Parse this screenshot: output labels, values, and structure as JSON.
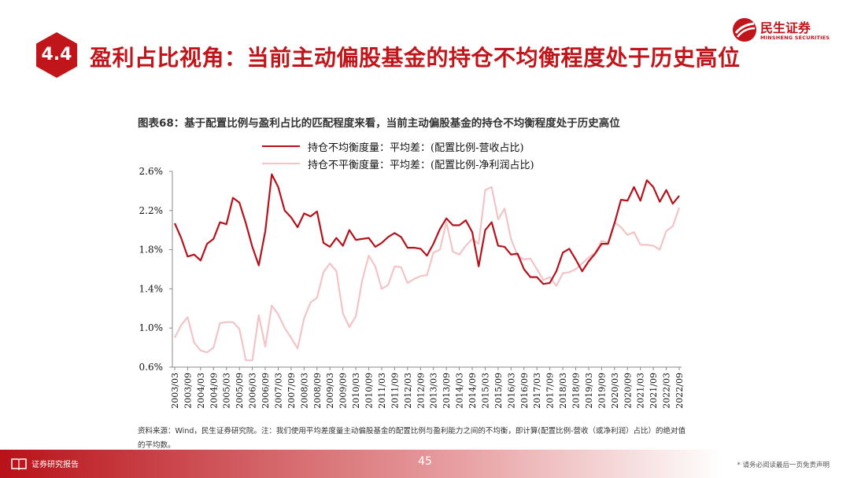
{
  "slide": {
    "section_number": "4.4",
    "title": "盈利占比视角：当前主动偏股基金的持仓不均衡程度处于历史高位",
    "page_number": "45"
  },
  "brand": {
    "name_cn": "民生证券",
    "name_en": "MINSHENG SECURITIES",
    "color": "#c0161b"
  },
  "footer": {
    "label": "证券研究报告",
    "disclaimer": "* 请务必阅读最后一页免责声明"
  },
  "source_note": "资料来源：Wind，民生证券研究院。注：我们使用平均差度量主动偏股基金的配置比例与盈利能力之间的不均衡，即计算(配置比例-营收（或净利润）占比）的绝对值的平均数。",
  "chart_data": {
    "type": "line",
    "title": "图表68：基于配置比例与盈利占比的匹配程度来看，当前主动偏股基金的持仓不均衡程度处于历史高位",
    "xlabel": "",
    "ylabel": "",
    "ylim": [
      0.006,
      0.026
    ],
    "yticks": [
      "0.6%",
      "1.0%",
      "1.4%",
      "1.8%",
      "2.2%",
      "2.6%"
    ],
    "ytick_values": [
      0.006,
      0.01,
      0.014,
      0.018,
      0.022,
      0.026
    ],
    "grid": false,
    "legend_position": "top-center",
    "x_tick_labels": [
      "2003/03",
      "2003/09",
      "2004/03",
      "2004/09",
      "2005/03",
      "2005/09",
      "2006/03",
      "2006/09",
      "2007/03",
      "2007/09",
      "2008/03",
      "2008/09",
      "2009/03",
      "2009/09",
      "2010/03",
      "2010/09",
      "2011/03",
      "2011/09",
      "2012/03",
      "2012/09",
      "2013/03",
      "2013/09",
      "2014/03",
      "2014/09",
      "2015/03",
      "2015/09",
      "2016/03",
      "2016/09",
      "2017/03",
      "2017/09",
      "2018/03",
      "2018/09",
      "2019/03",
      "2019/09",
      "2020/03",
      "2020/09",
      "2021/03",
      "2021/09",
      "2022/03",
      "2022/09"
    ],
    "x": [
      "2003/03",
      "2003/06",
      "2003/09",
      "2003/12",
      "2004/03",
      "2004/06",
      "2004/09",
      "2004/12",
      "2005/03",
      "2005/06",
      "2005/09",
      "2005/12",
      "2006/03",
      "2006/06",
      "2006/09",
      "2006/12",
      "2007/03",
      "2007/06",
      "2007/09",
      "2007/12",
      "2008/03",
      "2008/06",
      "2008/09",
      "2008/12",
      "2009/03",
      "2009/06",
      "2009/09",
      "2009/12",
      "2010/03",
      "2010/06",
      "2010/09",
      "2010/12",
      "2011/03",
      "2011/06",
      "2011/09",
      "2011/12",
      "2012/03",
      "2012/06",
      "2012/09",
      "2012/12",
      "2013/03",
      "2013/06",
      "2013/09",
      "2013/12",
      "2014/03",
      "2014/06",
      "2014/09",
      "2014/12",
      "2015/03",
      "2015/06",
      "2015/09",
      "2015/12",
      "2016/03",
      "2016/06",
      "2016/09",
      "2016/12",
      "2017/03",
      "2017/06",
      "2017/09",
      "2017/12",
      "2018/03",
      "2018/06",
      "2018/09",
      "2018/12",
      "2019/03",
      "2019/06",
      "2019/09",
      "2019/12",
      "2020/03",
      "2020/06",
      "2020/09",
      "2020/12",
      "2021/03",
      "2021/06",
      "2021/09",
      "2021/12",
      "2022/03",
      "2022/06",
      "2022/09"
    ],
    "series": [
      {
        "name": "持仓不均衡度量：平均差：(配置比例-营收占比)",
        "color": "#b5121b",
        "values": [
          0.0207,
          0.0192,
          0.0173,
          0.0175,
          0.0169,
          0.0186,
          0.0191,
          0.0208,
          0.0206,
          0.0233,
          0.0228,
          0.0207,
          0.0183,
          0.0164,
          0.0199,
          0.0257,
          0.0244,
          0.022,
          0.0213,
          0.0203,
          0.0217,
          0.0214,
          0.0219,
          0.0187,
          0.0183,
          0.0192,
          0.0184,
          0.02,
          0.019,
          0.0191,
          0.0192,
          0.0183,
          0.0187,
          0.0193,
          0.0197,
          0.0193,
          0.0182,
          0.0182,
          0.0181,
          0.0174,
          0.0186,
          0.0201,
          0.0212,
          0.0205,
          0.0205,
          0.021,
          0.0198,
          0.0163,
          0.02,
          0.0208,
          0.0184,
          0.0183,
          0.0175,
          0.0176,
          0.016,
          0.0152,
          0.0152,
          0.0145,
          0.0146,
          0.0158,
          0.0177,
          0.0181,
          0.017,
          0.0158,
          0.0168,
          0.0176,
          0.0186,
          0.0186,
          0.0207,
          0.0231,
          0.023,
          0.0244,
          0.023,
          0.0251,
          0.0244,
          0.0229,
          0.0241,
          0.0227,
          0.0235
        ]
      },
      {
        "name": "持仓不平衡度量：平均差：(配置比例-净利润占比)",
        "color": "#f2c4c5",
        "values": [
          0.009,
          0.0103,
          0.0111,
          0.0085,
          0.0077,
          0.0075,
          0.008,
          0.0105,
          0.0106,
          0.0106,
          0.0099,
          0.0067,
          0.0067,
          0.0113,
          0.0081,
          0.0123,
          0.0114,
          0.01,
          0.009,
          0.0079,
          0.011,
          0.0126,
          0.0131,
          0.0157,
          0.0166,
          0.0158,
          0.0115,
          0.0101,
          0.0112,
          0.0149,
          0.0174,
          0.0163,
          0.014,
          0.0144,
          0.0163,
          0.0162,
          0.0146,
          0.015,
          0.0153,
          0.0154,
          0.0177,
          0.018,
          0.0208,
          0.0178,
          0.0175,
          0.0184,
          0.0191,
          0.0186,
          0.0241,
          0.0244,
          0.0211,
          0.0222,
          0.0191,
          0.0174,
          0.017,
          0.0171,
          0.016,
          0.0149,
          0.0152,
          0.0143,
          0.0156,
          0.0157,
          0.016,
          0.0166,
          0.0172,
          0.0177,
          0.0189,
          0.0187,
          0.0208,
          0.0203,
          0.0195,
          0.0198,
          0.0185,
          0.0185,
          0.0184,
          0.018,
          0.0199,
          0.0204,
          0.0223
        ]
      }
    ]
  }
}
